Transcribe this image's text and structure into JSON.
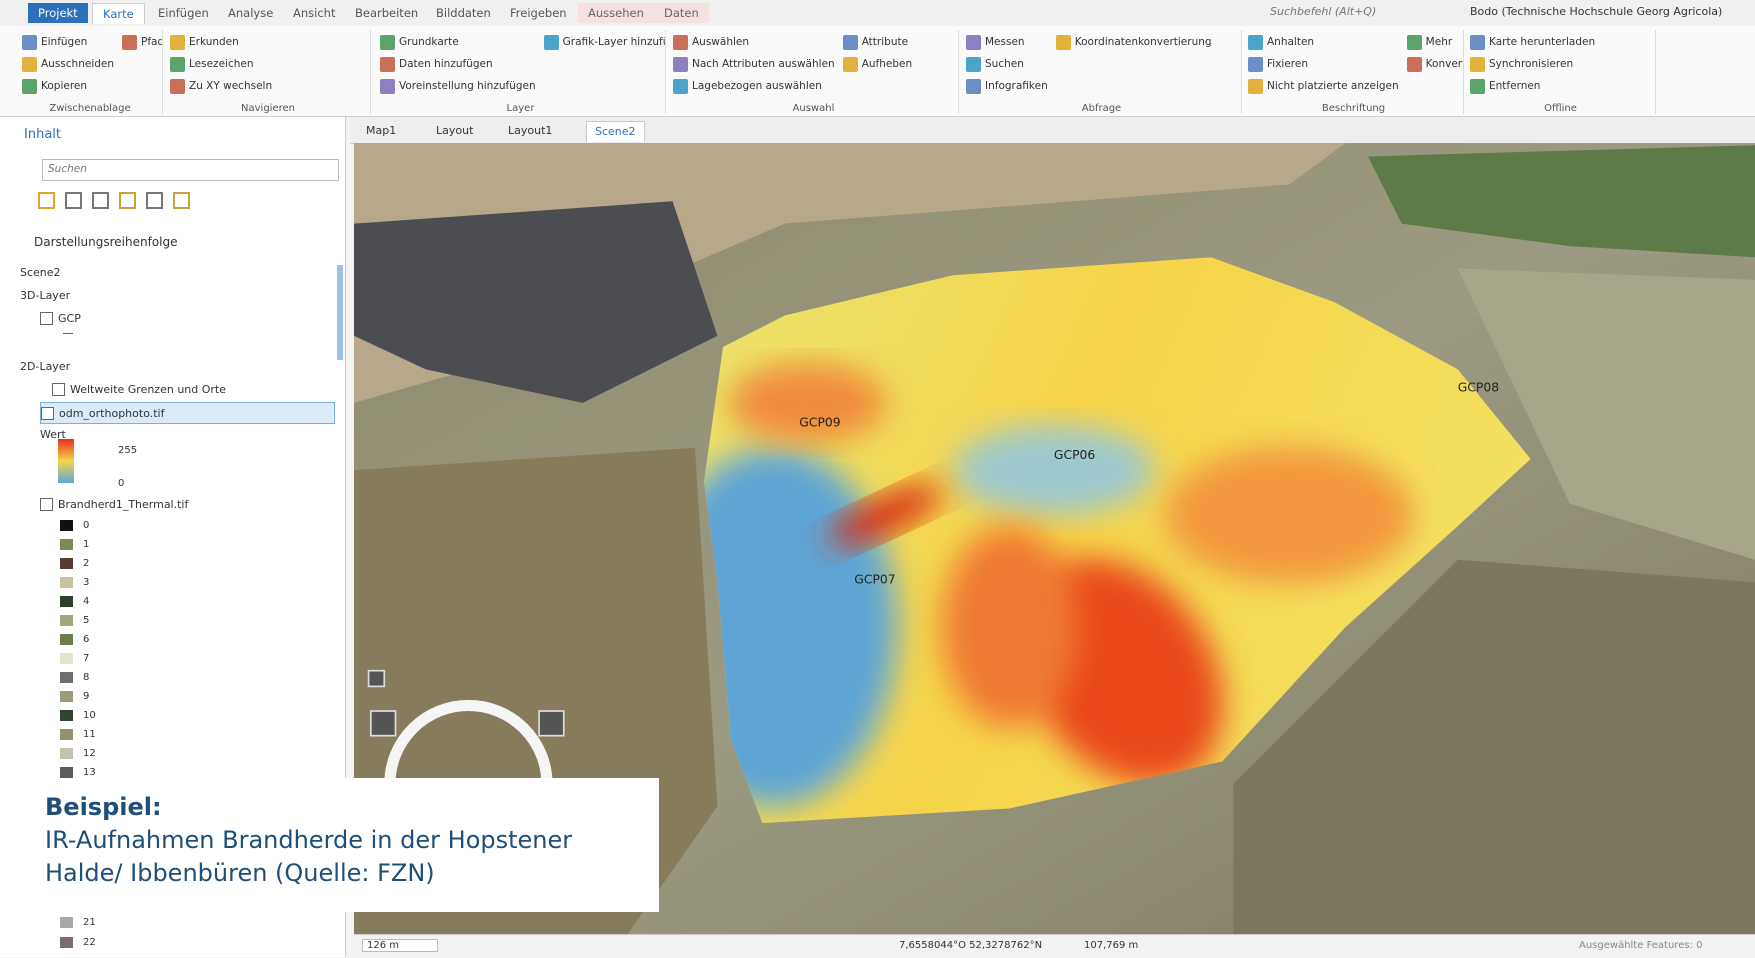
{
  "tabs": [
    "Projekt",
    "Karte",
    "Einfügen",
    "Analyse",
    "Ansicht",
    "Bearbeiten",
    "Bilddaten",
    "Freigeben",
    "Aussehen",
    "Daten"
  ],
  "search": "Suchbefehl (Alt+Q)",
  "user": "Bodo (Technische Hochschule Georg Agricola)",
  "ribbon_groups": [
    {
      "label": "Zwischenablage",
      "buttons": [
        "Einfügen",
        "Ausschneiden",
        "Kopieren",
        "Pfad kopieren"
      ]
    },
    {
      "label": "Navigieren",
      "buttons": [
        "Erkunden",
        "Lesezeichen",
        "Zu XY wechseln"
      ]
    },
    {
      "label": "Layer",
      "buttons": [
        "Grundkarte",
        "Daten hinzufügen",
        "Voreinstellung hinzufügen",
        "Grafik-Layer hinzufügen"
      ]
    },
    {
      "label": "Auswahl",
      "buttons": [
        "Auswählen",
        "Nach Attributen auswählen",
        "Lagebezogen auswählen",
        "Attribute",
        "Aufheben"
      ]
    },
    {
      "label": "Abfrage",
      "buttons": [
        "Messen",
        "Suchen",
        "Infografiken",
        "Koordinatenkonvertierung"
      ]
    },
    {
      "label": "Beschriftung",
      "buttons": [
        "Anhalten",
        "Fixieren",
        "Nicht platzierte anzeigen",
        "Mehr",
        "Konvertieren"
      ]
    },
    {
      "label": "Offline",
      "buttons": [
        "Karte herunterladen",
        "Synchronisieren",
        "Entfernen"
      ]
    }
  ],
  "contents": {
    "title": "Inhalt",
    "search": "Suchen",
    "heading": "Darstellungsreihenfolge",
    "tree": [
      "Scene2",
      "3D-Layer",
      "GCP",
      "2D-Layer",
      "Weltweite Grenzen und Orte",
      "odm_orthophoto.tif",
      "Wert",
      255,
      0,
      "Brandherd1_Thermal.tif"
    ],
    "legend": [
      0,
      1,
      2,
      3,
      4,
      5,
      6,
      7,
      8,
      9,
      10,
      11,
      12,
      13,
      21,
      22
    ]
  },
  "view_tabs": [
    "Map1",
    "Layout",
    "Layout1",
    "Scene2"
  ],
  "map_labels": [
    "GCP09",
    "GCP06",
    "GCP07",
    "GCP08"
  ],
  "caption": {
    "title": "Beispiel:",
    "text": "IR-Aufnahmen Brandherde in der Hopstener Halde/ Ibbenbüren (Quelle: FZN)"
  },
  "status": {
    "scale": "126 m",
    "coordinates": "7,6558044°O 52,3278762°N",
    "elevation": "107,769 m",
    "selected": "Ausgewählte Features: 0"
  }
}
